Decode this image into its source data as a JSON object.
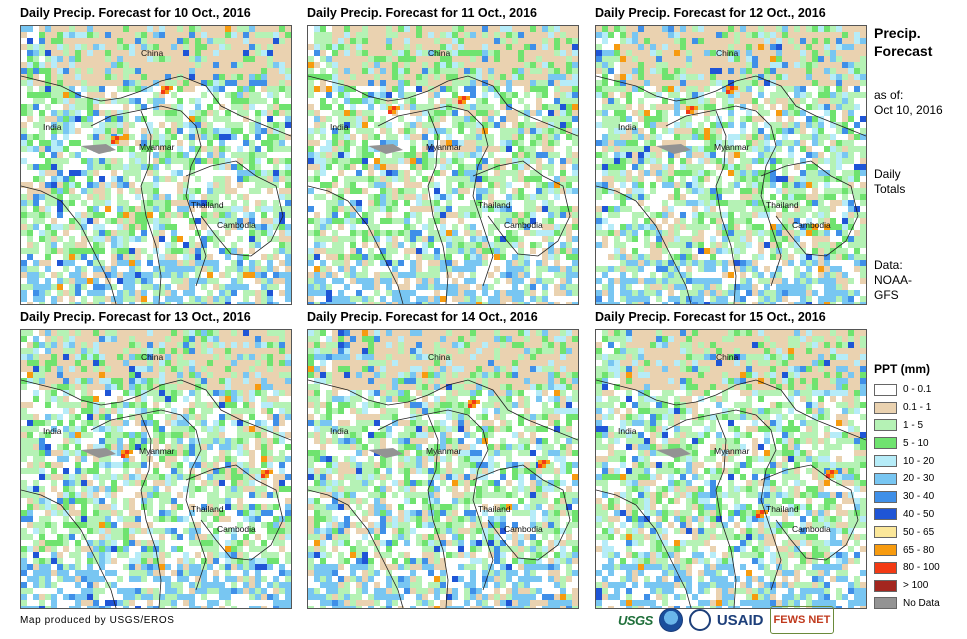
{
  "panels": [
    {
      "title": "Daily Precip. Forecast for 10 Oct., 2016"
    },
    {
      "title": "Daily Precip. Forecast for 11 Oct., 2016"
    },
    {
      "title": "Daily Precip. Forecast for 12 Oct., 2016"
    },
    {
      "title": "Daily Precip. Forecast for 13 Oct., 2016"
    },
    {
      "title": "Daily Precip. Forecast for 14 Oct., 2016"
    },
    {
      "title": "Daily Precip. Forecast for 15 Oct., 2016"
    }
  ],
  "map_labels": {
    "china": "China",
    "india": "India",
    "myanmar": "Myanmar",
    "thailand": "Thailand",
    "cambodia": "Cambodia"
  },
  "side": {
    "title_line1": "Precip.",
    "title_line2": "Forecast",
    "asof_line1": "as of:",
    "asof_line2": "Oct 10, 2016",
    "daily_line1": "Daily",
    "daily_line2": "Totals",
    "data_line1": "Data:",
    "data_line2": "NOAA-",
    "data_line3": "GFS"
  },
  "legend": {
    "title": "PPT (mm)",
    "items": [
      {
        "label": "0 - 0.1",
        "color": "#ffffff"
      },
      {
        "label": "0.1 - 1",
        "color": "#ead2b0"
      },
      {
        "label": "1 - 5",
        "color": "#b5f2b5"
      },
      {
        "label": "5 - 10",
        "color": "#6fe36f"
      },
      {
        "label": "10 - 20",
        "color": "#b6ecf8"
      },
      {
        "label": "20 - 30",
        "color": "#78c6f2"
      },
      {
        "label": "30 - 40",
        "color": "#3f8fe8"
      },
      {
        "label": "40 - 50",
        "color": "#1f55d6"
      },
      {
        "label": "50 - 65",
        "color": "#fbe79a"
      },
      {
        "label": "65 - 80",
        "color": "#f79b0f"
      },
      {
        "label": "80 - 100",
        "color": "#f33a14"
      },
      {
        "label": "> 100",
        "color": "#a3261f"
      },
      {
        "label": "No Data",
        "color": "#939393"
      }
    ]
  },
  "credit": "Map produced by USGS/EROS",
  "logos": {
    "usgs": "USGS",
    "usaid": "USAID",
    "fews": "FEWS NET"
  }
}
